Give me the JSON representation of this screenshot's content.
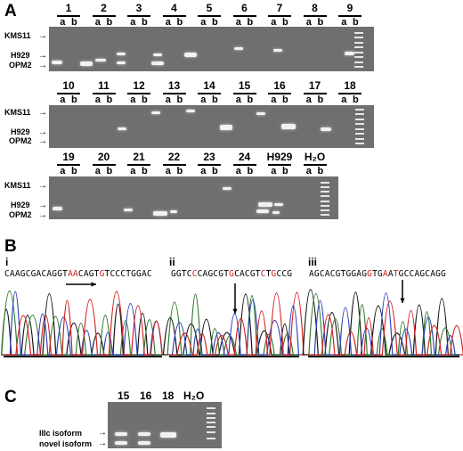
{
  "panel_a": {
    "letter": "A",
    "marker_labels": [
      "KMS11",
      "H929",
      "OPM2"
    ],
    "lane_sublabels": [
      "a",
      "b"
    ],
    "row1_lanes": [
      "1",
      "2",
      "3",
      "4",
      "5",
      "6",
      "7",
      "8",
      "9"
    ],
    "row2_lanes": [
      "10",
      "11",
      "12",
      "13",
      "14",
      "15",
      "16",
      "17",
      "18"
    ],
    "row3_lanes": [
      "19",
      "20",
      "21",
      "22",
      "23",
      "24",
      "H929",
      "H₂O"
    ]
  },
  "panel_b": {
    "letter": "B",
    "chromatograms": [
      {
        "numeral": "i",
        "sequence": "CAAGCGACAGGTAACAGTGTCCCTGGAC",
        "red_positions": [
          12,
          13,
          18
        ]
      },
      {
        "numeral": "ii",
        "sequence": "GGTCCCAGCGTGCACGTCTGCCG",
        "red_positions": [
          4,
          11,
          17,
          19
        ]
      },
      {
        "numeral": "iii",
        "sequence": "AGCACGTGGAGGTGAATGCCAGCAGG",
        "red_positions": [
          11,
          14,
          16
        ]
      }
    ]
  },
  "panel_c": {
    "letter": "C",
    "lanes": [
      "15",
      "16",
      "18",
      "H₂O"
    ],
    "band_labels": [
      "IIIc isoform",
      "novel isoform"
    ]
  }
}
